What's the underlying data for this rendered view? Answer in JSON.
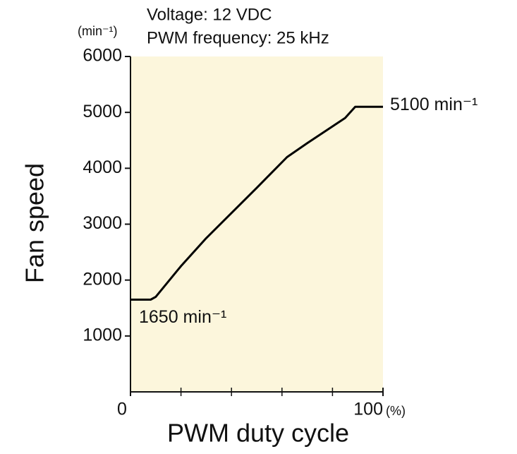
{
  "chart_data": {
    "type": "line",
    "title_lines": [
      "Voltage: 12 VDC",
      "PWM frequency: 25 kHz"
    ],
    "y_label": "Fan speed",
    "y_unit": "(min⁻¹)",
    "x_label": "PWM duty cycle",
    "x_unit": "(%)",
    "x": [
      0,
      8,
      10,
      20,
      30,
      40,
      50,
      62,
      70,
      80,
      85,
      89,
      100
    ],
    "series": [
      {
        "name": "Fan speed",
        "color": "#000000",
        "values": [
          1650,
          1650,
          1700,
          2250,
          2750,
          3200,
          3650,
          4200,
          4450,
          4750,
          4900,
          5100,
          5100
        ]
      }
    ],
    "xlim": [
      0,
      100
    ],
    "xticks": [
      0,
      100
    ],
    "x_minor_ticks": [
      20,
      40,
      60,
      80
    ],
    "ylim": [
      0,
      6000
    ],
    "yticks": [
      1000,
      2000,
      3000,
      4000,
      5000,
      6000
    ],
    "plot_background": "#fcf6dc",
    "annotations": [
      {
        "text": "5100 min⁻¹",
        "x": 100,
        "y": 5100
      },
      {
        "text": "1650 min⁻¹",
        "x": 0,
        "y": 1650
      }
    ]
  }
}
